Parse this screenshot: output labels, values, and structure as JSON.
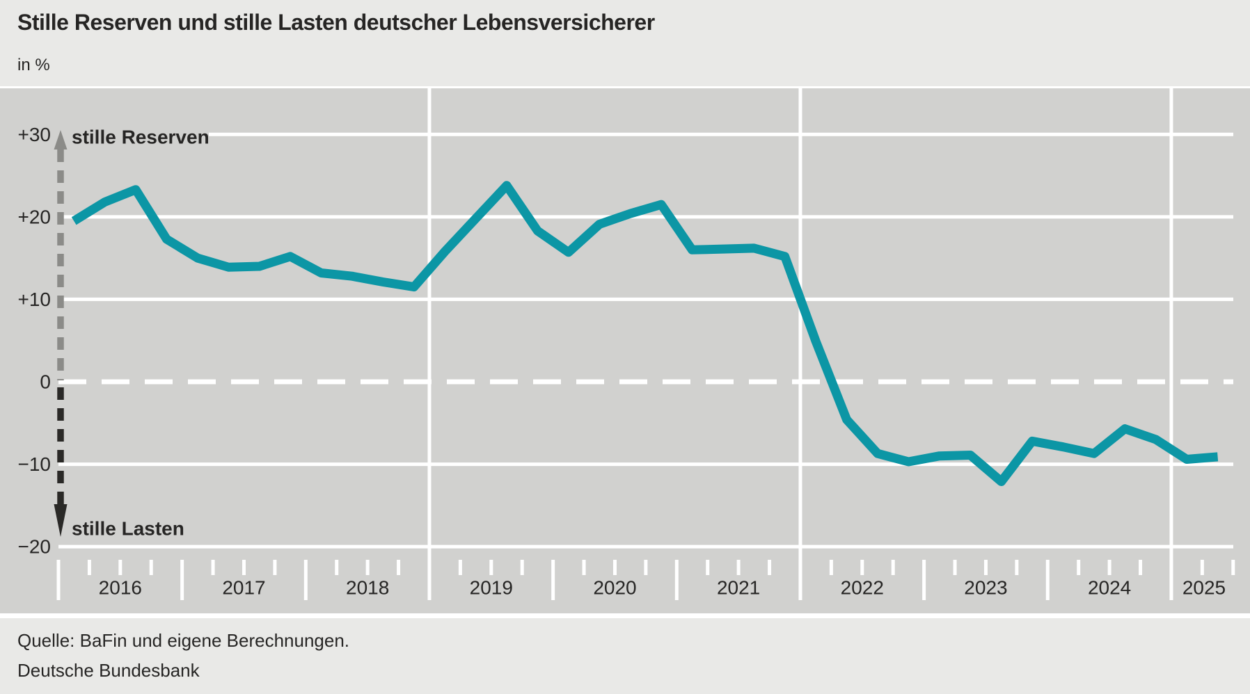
{
  "header": {
    "title": "Stille Reserven und stille Lasten deutscher Lebensversicherer",
    "subtitle": "in %"
  },
  "footer": {
    "source": "Quelle: BaFin und eigene Berechnungen.",
    "publisher": "Deutsche Bundesbank"
  },
  "chart_data": {
    "type": "line",
    "title": "Stille Reserven und stille Lasten deutscher Lebensversicherer",
    "unit": "in %",
    "frequency": "quarterly",
    "x": [
      "2016-Q1",
      "2016-Q2",
      "2016-Q3",
      "2016-Q4",
      "2017-Q1",
      "2017-Q2",
      "2017-Q3",
      "2017-Q4",
      "2018-Q1",
      "2018-Q2",
      "2018-Q3",
      "2018-Q4",
      "2019-Q1",
      "2019-Q2",
      "2019-Q3",
      "2019-Q4",
      "2020-Q1",
      "2020-Q2",
      "2020-Q3",
      "2020-Q4",
      "2021-Q1",
      "2021-Q2",
      "2021-Q3",
      "2021-Q4",
      "2022-Q1",
      "2022-Q2",
      "2022-Q3",
      "2022-Q4",
      "2023-Q1",
      "2023-Q2",
      "2023-Q3",
      "2023-Q4",
      "2024-Q1",
      "2024-Q2",
      "2024-Q3",
      "2024-Q4",
      "2025-Q1",
      "2025-Q2"
    ],
    "series": [
      {
        "name": "Stille Reserven (+) / stille Lasten (−)",
        "color": "#0C96A5",
        "values": [
          19.5,
          21.8,
          23.3,
          17.3,
          15.0,
          13.9,
          14.0,
          15.2,
          13.2,
          12.8,
          12.1,
          11.5,
          15.8,
          19.8,
          23.8,
          18.3,
          15.7,
          19.1,
          20.4,
          21.5,
          16.0,
          16.1,
          16.2,
          15.2,
          4.9,
          -4.6,
          -8.7,
          -9.7,
          -9.0,
          -8.9,
          -12.1,
          -7.2,
          -7.9,
          -8.7,
          -5.7,
          -7.0,
          -9.4,
          -9.1
        ]
      }
    ],
    "ylim": [
      -20,
      30
    ],
    "ytick_values": [
      30,
      20,
      10,
      0,
      -10,
      -20
    ],
    "ytick_labels": [
      "+30",
      "+20",
      "+10",
      "0",
      "−10",
      "−20"
    ],
    "year_labels": [
      "2016",
      "2017",
      "2018",
      "2019",
      "2020",
      "2021",
      "2022",
      "2023",
      "2024",
      "2025"
    ],
    "gridline_year_indices": [
      3,
      6,
      9
    ],
    "zero_line_style": "dashed-white",
    "grid_color": "#ffffff",
    "plot_bg": "#d1d1cf",
    "page_bg": "#e9e9e7",
    "text_color": "#262524",
    "annotations": [
      {
        "text": "stille Reserven",
        "direction": "up",
        "arrow_color": "#8b8b88"
      },
      {
        "text": "stille Lasten",
        "direction": "down",
        "arrow_color": "#2a2927"
      }
    ]
  }
}
